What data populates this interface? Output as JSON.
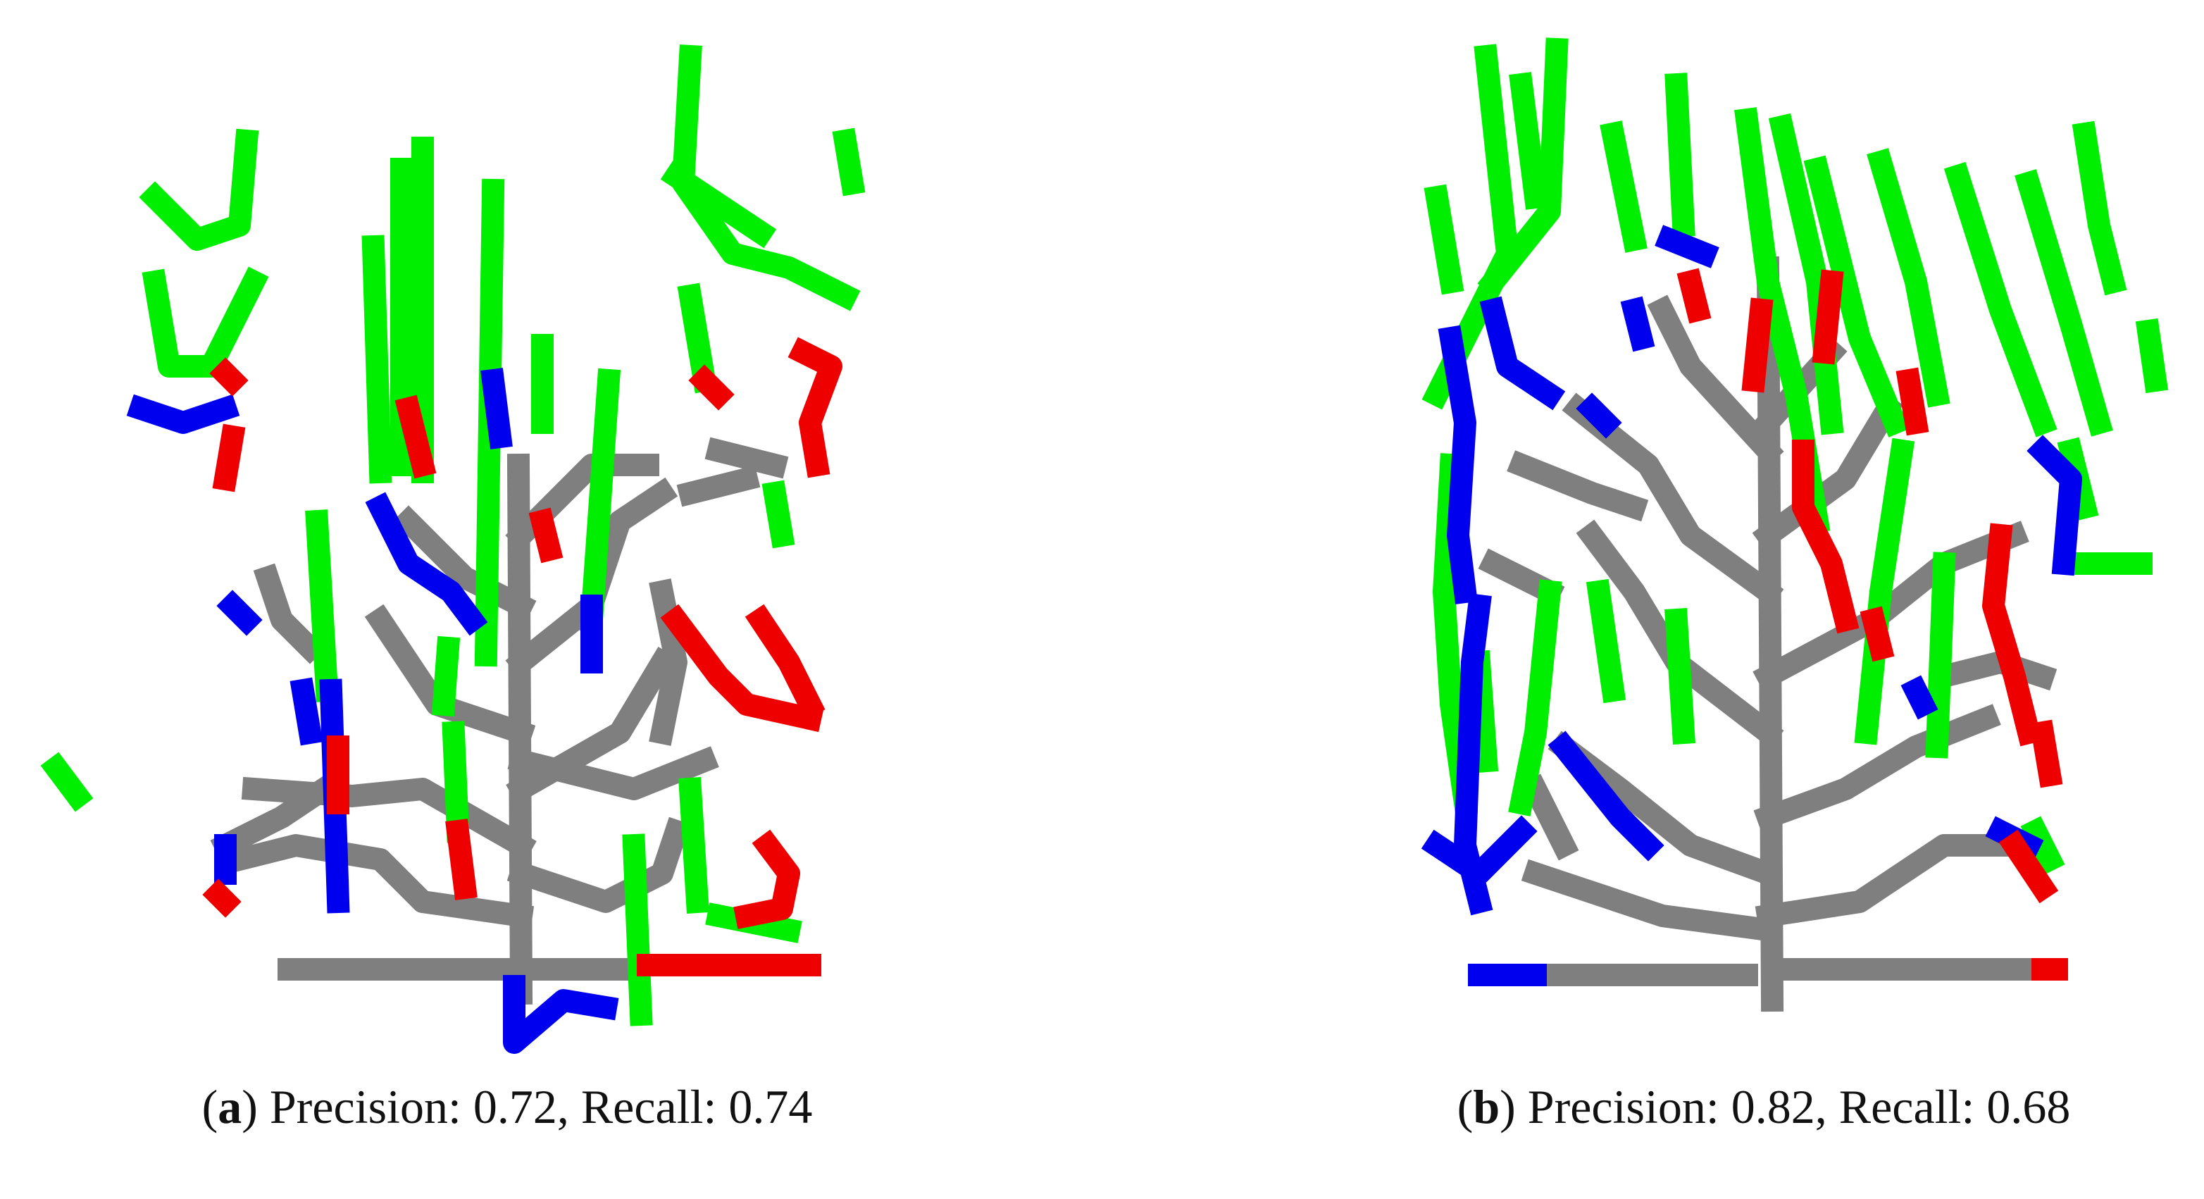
{
  "panels": [
    {
      "caption_parts": [
        "(",
        "a",
        ") Precision: 0.72, Recall: 0.74"
      ]
    },
    {
      "caption_parts": [
        "(",
        "b",
        ") Precision: 0.82, Recall: 0.68"
      ]
    }
  ]
}
